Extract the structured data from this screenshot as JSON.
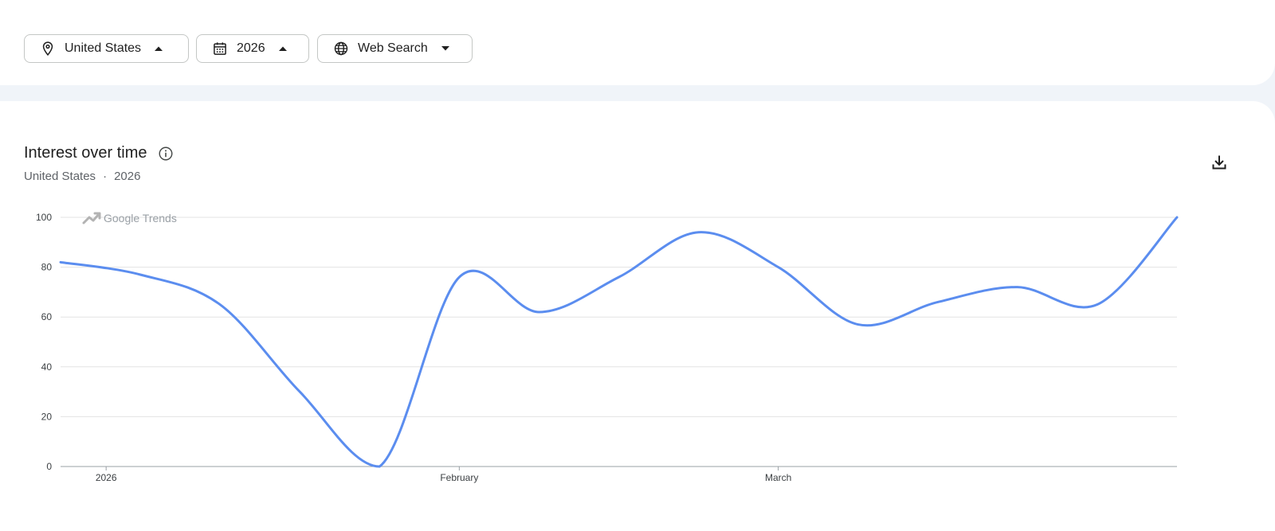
{
  "filters": {
    "location": {
      "label": "United States",
      "icon": "location-pin-icon",
      "caret": "caret-up-icon"
    },
    "year": {
      "label": "2026",
      "icon": "calendar-icon",
      "caret": "caret-up-icon"
    },
    "search_type": {
      "label": "Web Search",
      "icon": "globe-icon",
      "caret": "caret-down-icon"
    }
  },
  "chart_card": {
    "title": "Interest over time",
    "info_icon": "info-icon",
    "subtitle": {
      "location": "United States",
      "separator": "·",
      "period": "2026"
    },
    "download_icon": "download-icon",
    "watermark": "Google Trends"
  },
  "chart_data": {
    "type": "line",
    "title": "Interest over time",
    "xlabel": "",
    "ylabel": "",
    "x_tick_labels": [
      "2026",
      "February",
      "March"
    ],
    "x_tick_dates": [
      "2026-01-01",
      "2026-02-01",
      "2026-03-01"
    ],
    "y_ticks": [
      0,
      20,
      40,
      60,
      80,
      100
    ],
    "ylim": [
      0,
      100
    ],
    "grid": true,
    "legend": "none",
    "series": [
      {
        "color": "#5b8def",
        "points": [
          {
            "x": "2025-12-28",
            "y": 82
          },
          {
            "x": "2026-01-04",
            "y": 77
          },
          {
            "x": "2026-01-11",
            "y": 65
          },
          {
            "x": "2026-01-18",
            "y": 30
          },
          {
            "x": "2026-01-25",
            "y": 0
          },
          {
            "x": "2026-02-01",
            "y": 76
          },
          {
            "x": "2026-02-08",
            "y": 62
          },
          {
            "x": "2026-02-15",
            "y": 76
          },
          {
            "x": "2026-02-22",
            "y": 94
          },
          {
            "x": "2026-03-01",
            "y": 80
          },
          {
            "x": "2026-03-08",
            "y": 57
          },
          {
            "x": "2026-03-15",
            "y": 66
          },
          {
            "x": "2026-03-22",
            "y": 72
          },
          {
            "x": "2026-03-29",
            "y": 65
          },
          {
            "x": "2026-04-05",
            "y": 100
          }
        ]
      }
    ]
  }
}
